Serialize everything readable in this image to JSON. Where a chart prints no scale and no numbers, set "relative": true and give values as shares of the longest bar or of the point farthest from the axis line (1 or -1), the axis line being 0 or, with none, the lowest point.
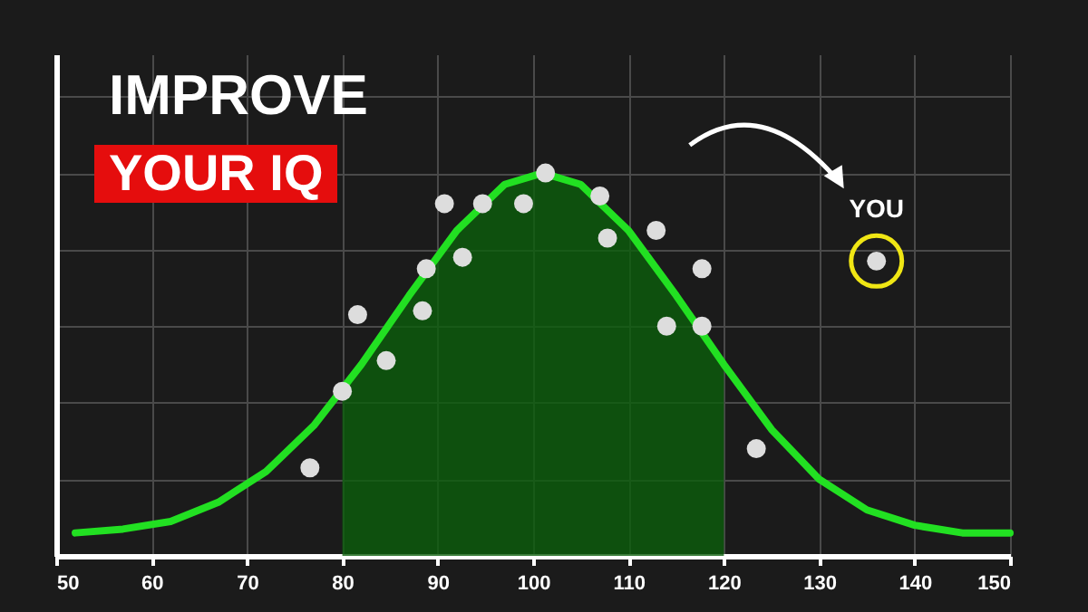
{
  "chart_data": {
    "type": "line",
    "title": "IMPROVE",
    "subtitle": "YOUR IQ",
    "relative": true,
    "xlim": [
      50,
      150
    ],
    "xticks": [
      50,
      60,
      70,
      80,
      90,
      100,
      110,
      120,
      130,
      140,
      150
    ],
    "grid": true,
    "annotations": [
      {
        "text": "YOU",
        "x": 136,
        "y": 0.77
      }
    ],
    "series": [
      {
        "type": "area",
        "color": "#0b5e0b",
        "x": [
          80,
          82,
          87,
          92,
          97,
          101,
          105,
          110,
          115,
          120
        ],
        "values": [
          0.43,
          0.5,
          0.68,
          0.85,
          0.97,
          1,
          0.97,
          0.85,
          0.68,
          0.5
        ]
      },
      {
        "color": "#22e022",
        "marker": "none",
        "line_style": "solid",
        "x": [
          52,
          57,
          62,
          67,
          72,
          77,
          82,
          87,
          92,
          97,
          101,
          105,
          110,
          115,
          120,
          125,
          130,
          135,
          140,
          145,
          150
        ],
        "values": [
          0.06,
          0.07,
          0.09,
          0.14,
          0.22,
          0.34,
          0.5,
          0.68,
          0.85,
          0.97,
          1,
          0.97,
          0.85,
          0.68,
          0.5,
          0.33,
          0.2,
          0.12,
          0.08,
          0.06,
          0.06
        ]
      },
      {
        "type": "scatter",
        "color": "#dddddd",
        "marker": "circle",
        "x": [
          76.6,
          80,
          81.6,
          84.6,
          88.4,
          88.8,
          90.7,
          92.6,
          94.7,
          99,
          101.3,
          107,
          107.8,
          112.9,
          114,
          117.7,
          117.7,
          123.4,
          136
        ],
        "values": [
          0.23,
          0.43,
          0.63,
          0.51,
          0.64,
          0.75,
          0.92,
          0.78,
          0.92,
          0.92,
          1,
          0.94,
          0.83,
          0.85,
          0.6,
          0.75,
          0.6,
          0.28,
          0.77
        ]
      }
    ]
  }
}
